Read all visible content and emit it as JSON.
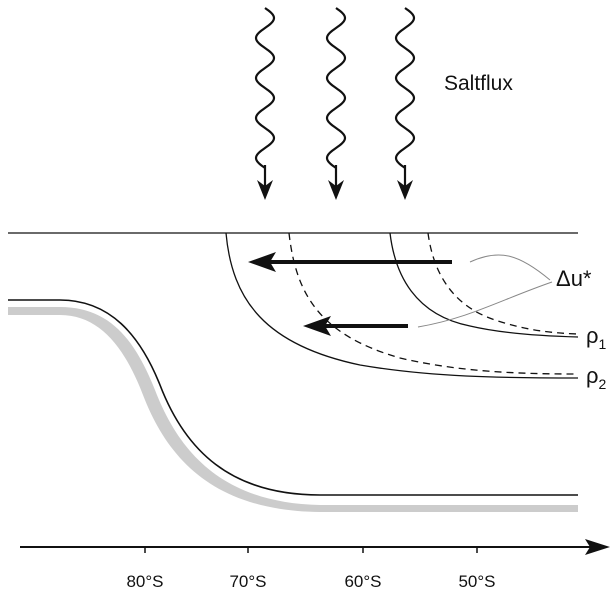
{
  "diagram": {
    "salt_flux_label": "Saltflux",
    "delta_u_label": "Δu*",
    "rho1": {
      "symbol": "ρ",
      "subscript": "1"
    },
    "rho2": {
      "symbol": "ρ",
      "subscript": "2"
    },
    "latitude_ticks": [
      "80°S",
      "70°S",
      "60°S",
      "50°S"
    ],
    "wave_arrow_count": 3,
    "colors": {
      "ink": "#111111",
      "seafloor_shadow": "#cccccc",
      "annotation_line": "#888888"
    }
  }
}
